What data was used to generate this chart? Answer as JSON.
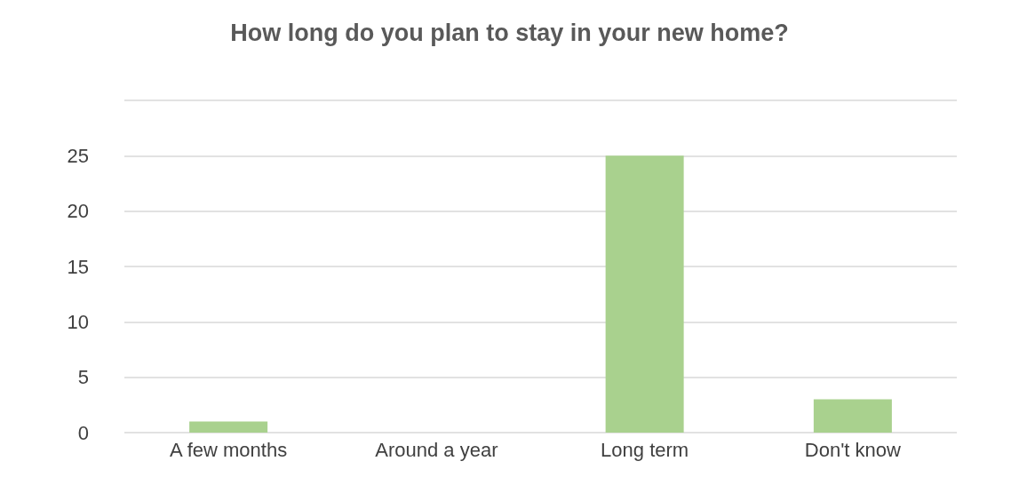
{
  "chart_data": {
    "type": "bar",
    "title": "How long do you plan to stay in your new home?",
    "categories": [
      "A few months",
      "Around a year",
      "Long term",
      "Don't know"
    ],
    "values": [
      1,
      0,
      25,
      3
    ],
    "color": "#a9d18e",
    "ylim": [
      0,
      30
    ],
    "yticks": [
      0,
      5,
      10,
      15,
      20,
      25,
      {
        "value": 30,
        "label": null
      }
    ],
    "grid": "y"
  }
}
